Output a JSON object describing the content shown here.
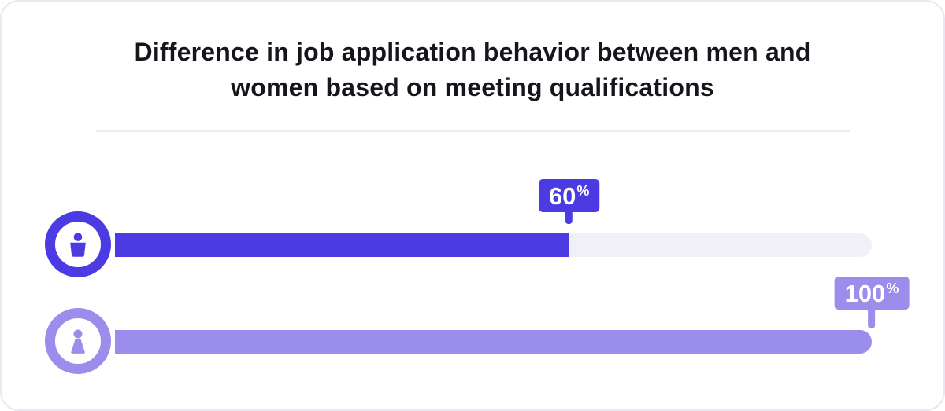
{
  "chart": {
    "title_lines": [
      "Difference in job application behavior between men and",
      "women based on meeting qualifications"
    ]
  },
  "chart_data": {
    "type": "bar",
    "orientation": "horizontal",
    "title": "Difference in job application behavior between men and women based on meeting qualifications",
    "categories": [
      "men",
      "women"
    ],
    "values": [
      60,
      100
    ],
    "value_unit": "%",
    "xlim": [
      0,
      100
    ],
    "grid": false,
    "legend": "none",
    "series": [
      {
        "name": "men",
        "value": 60,
        "value_label": "60",
        "unit_label": "%",
        "icon": "male-person-icon",
        "color": "#4c3ae2"
      },
      {
        "name": "women",
        "value": 100,
        "value_label": "100",
        "unit_label": "%",
        "icon": "female-person-icon",
        "color": "#9b8dec"
      }
    ],
    "track_color": "#f1f0f6"
  },
  "colors": {
    "card_background": "#ffffff",
    "card_border": "#e9e7f2",
    "title_text": "#15151c",
    "divider": "#ecebf3",
    "badge_text": "#ffffff",
    "men_accent": "#4c3ae2",
    "women_accent": "#9b8dec",
    "bar_track": "#f1f0f6"
  }
}
